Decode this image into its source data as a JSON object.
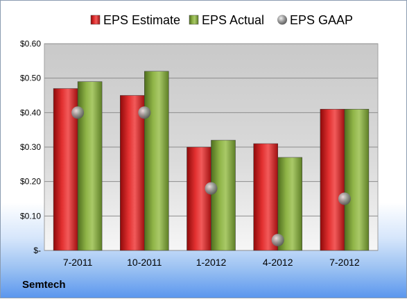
{
  "chart_data": {
    "type": "bar",
    "categories": [
      "7-2011",
      "10-2011",
      "1-2012",
      "4-2012",
      "7-2012"
    ],
    "series": [
      {
        "name": "EPS Estimate",
        "kind": "bar",
        "color": "#d41c1c",
        "values": [
          0.47,
          0.45,
          0.3,
          0.31,
          0.41
        ]
      },
      {
        "name": "EPS Actual",
        "kind": "bar",
        "color": "#7fa33a",
        "values": [
          0.49,
          0.52,
          0.32,
          0.27,
          0.41
        ]
      },
      {
        "name": "EPS GAAP",
        "kind": "marker",
        "color": "#9a9a9a",
        "values": [
          0.4,
          0.4,
          0.18,
          0.03,
          0.15
        ]
      }
    ],
    "ylim": [
      0,
      0.6
    ],
    "yticks": [
      0,
      0.1,
      0.2,
      0.3,
      0.4,
      0.5,
      0.6
    ],
    "ytick_labels": [
      "$-",
      "$0.10",
      "$0.20",
      "$0.30",
      "$0.40",
      "$0.50",
      "$0.60"
    ],
    "legend_position": "top",
    "grid": true,
    "title": "",
    "xlabel": "",
    "ylabel": ""
  },
  "company": "Semtech"
}
